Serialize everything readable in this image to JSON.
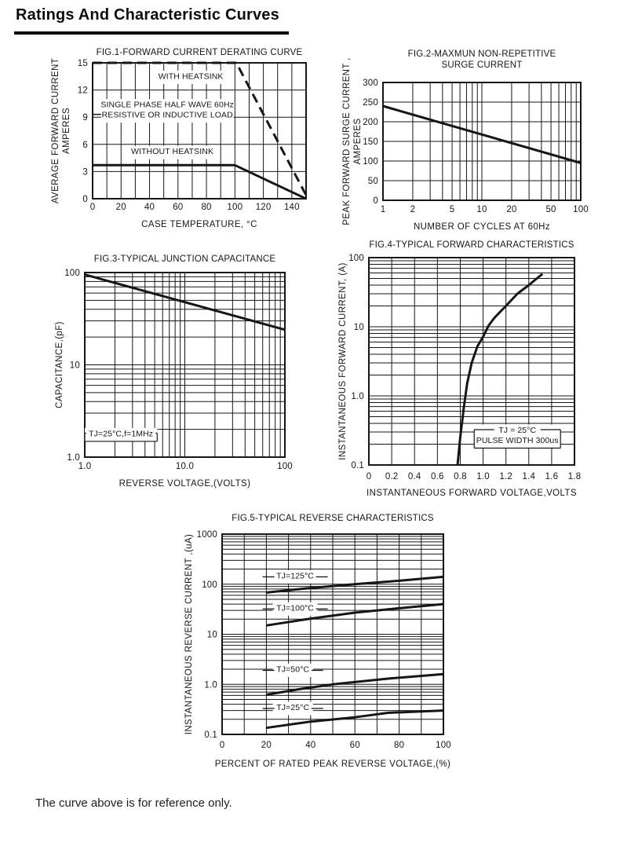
{
  "header": {
    "title": "Ratings And Characteristic Curves"
  },
  "footer": {
    "note": "The curve above is for reference only."
  },
  "ink": "#161616",
  "chart_data": [
    {
      "id": "fig1",
      "type": "line",
      "title": [
        "FIG.1-FORWARD CURRENT DERATING CURVE"
      ],
      "xlabel": "CASE TEMPERATURE, °C",
      "ylabel": [
        "AVERAGE FORWARD CURRENT",
        "AMPERES"
      ],
      "x_axis": {
        "type": "linear",
        "min": 0,
        "max": 150,
        "grid_step": 10,
        "ticks": [
          {
            "v": 0,
            "t": "0"
          },
          {
            "v": 20,
            "t": "20"
          },
          {
            "v": 40,
            "t": "40"
          },
          {
            "v": 60,
            "t": "60"
          },
          {
            "v": 80,
            "t": "80"
          },
          {
            "v": 100,
            "t": "100"
          },
          {
            "v": 120,
            "t": "120"
          },
          {
            "v": 140,
            "t": "140"
          }
        ]
      },
      "y_axis": {
        "type": "linear",
        "min": 0,
        "max": 15,
        "grid_step": 3,
        "ticks": [
          {
            "v": 0,
            "t": "0"
          },
          {
            "v": 3,
            "t": "3"
          },
          {
            "v": 6,
            "t": "6"
          },
          {
            "v": 9,
            "t": "9"
          },
          {
            "v": 12,
            "t": "12"
          },
          {
            "v": 15,
            "t": "15"
          }
        ]
      },
      "series": [
        {
          "name": "WITH HEATSINK",
          "style": "dashed",
          "points": [
            [
              0,
              15
            ],
            [
              101,
              15
            ],
            [
              150,
              0.4
            ]
          ]
        },
        {
          "name": "WITHOUT HEATSINK",
          "style": "solid",
          "points": [
            [
              0,
              3.7
            ],
            [
              100,
              3.7
            ],
            [
              150,
              0
            ]
          ]
        }
      ],
      "annotations": [
        {
          "style": "plain",
          "x": 69,
          "y": 13.4,
          "lines": [
            "WITH HEATSINK"
          ]
        },
        {
          "style": "plain",
          "x": 52.5,
          "y": 9.7,
          "dash_left": true,
          "lines": [
            "SINGLE PHASE HALF WAVE 60Hz",
            "RESISTIVE OR INDUCTIVE LOAD"
          ]
        },
        {
          "style": "plain",
          "x": 56,
          "y": 5.1,
          "lines": [
            "WITHOUT HEATSINK"
          ]
        }
      ]
    },
    {
      "id": "fig2",
      "type": "line",
      "title": [
        "FIG.2-MAXMUN NON-REPETITIVE",
        "SURGE CURRENT"
      ],
      "xlabel": "NUMBER OF CYCLES AT 60Hz",
      "ylabel": [
        "PEAK FORWARD SURGE CURRENT ,",
        "AMPERES"
      ],
      "x_axis": {
        "type": "log",
        "min": 1,
        "max": 100,
        "ticks": [
          {
            "v": 1,
            "t": "1"
          },
          {
            "v": 2,
            "t": "2"
          },
          {
            "v": 5,
            "t": "5"
          },
          {
            "v": 10,
            "t": "10"
          },
          {
            "v": 20,
            "t": "20"
          },
          {
            "v": 50,
            "t": "50"
          },
          {
            "v": 100,
            "t": "100"
          }
        ]
      },
      "y_axis": {
        "type": "linear",
        "min": 0,
        "max": 300,
        "grid_step": 50,
        "ticks": [
          {
            "v": 0,
            "t": "0"
          },
          {
            "v": 50,
            "t": "50"
          },
          {
            "v": 100,
            "t": "100"
          },
          {
            "v": 150,
            "t": "150"
          },
          {
            "v": 200,
            "t": "200"
          },
          {
            "v": 250,
            "t": "250"
          },
          {
            "v": 300,
            "t": "300"
          }
        ]
      },
      "series": [
        {
          "name": "surge current",
          "style": "solid",
          "points": [
            [
              1,
              240
            ],
            [
              100,
              95
            ]
          ]
        }
      ]
    },
    {
      "id": "fig3",
      "type": "line",
      "title": [
        "FIG.3-TYPICAL JUNCTION CAPACITANCE"
      ],
      "xlabel": "REVERSE VOLTAGE,(VOLTS)",
      "ylabel": [
        "CAPACITANCE,(pF)"
      ],
      "x_axis": {
        "type": "log",
        "min": 1,
        "max": 100,
        "ticks": [
          {
            "v": 1,
            "t": "1.0"
          },
          {
            "v": 10,
            "t": "10.0"
          },
          {
            "v": 100,
            "t": "100"
          }
        ]
      },
      "y_axis": {
        "type": "log",
        "min": 1,
        "max": 100,
        "ticks": [
          {
            "v": 1,
            "t": "1.0"
          },
          {
            "v": 10,
            "t": "10"
          },
          {
            "v": 100,
            "t": "100"
          }
        ]
      },
      "series": [
        {
          "name": "junction capacitance",
          "style": "solid",
          "points": [
            [
              1,
              95
            ],
            [
              100,
              24
            ]
          ]
        }
      ],
      "annotations": [
        {
          "style": "legend",
          "x": 2.3,
          "y": 1.75,
          "lines": [
            "TJ=25°C,f=1MHz"
          ]
        }
      ]
    },
    {
      "id": "fig4",
      "type": "line",
      "title": [
        "FIG.4-TYPICAL FORWARD CHARACTERISTICS"
      ],
      "xlabel": "INSTANTANEOUS FORWARD VOLTAGE,VOLTS",
      "ylabel": [
        "INSTANTANEOUS FORWARD CURRENT, (A)"
      ],
      "x_axis": {
        "type": "linear",
        "min": 0,
        "max": 1.8,
        "grid_step": 0.2,
        "ticks": [
          {
            "v": 0,
            "t": "0"
          },
          {
            "v": 0.2,
            "t": "0.2"
          },
          {
            "v": 0.4,
            "t": "0.4"
          },
          {
            "v": 0.6,
            "t": "0.6"
          },
          {
            "v": 0.8,
            "t": "0.8"
          },
          {
            "v": 1,
            "t": "1.0"
          },
          {
            "v": 1.2,
            "t": "1.2"
          },
          {
            "v": 1.4,
            "t": "1.4"
          },
          {
            "v": 1.6,
            "t": "1.6"
          },
          {
            "v": 1.8,
            "t": "1.8"
          }
        ]
      },
      "y_axis": {
        "type": "log",
        "min": 0.1,
        "max": 100,
        "ticks": [
          {
            "v": 0.1,
            "t": "0.1"
          },
          {
            "v": 1,
            "t": "1.0"
          },
          {
            "v": 10,
            "t": "10"
          },
          {
            "v": 100,
            "t": "100"
          }
        ]
      },
      "series": [
        {
          "name": "forward current",
          "style": "solid",
          "points": [
            [
              0.776,
              0.1
            ],
            [
              0.8,
              0.25
            ],
            [
              0.83,
              0.65
            ],
            [
              0.86,
              1.5
            ],
            [
              0.9,
              3
            ],
            [
              0.95,
              5.2
            ],
            [
              1,
              7.2
            ],
            [
              1.05,
              10.5
            ],
            [
              1.1,
              13.5
            ],
            [
              1.15,
              16.5
            ],
            [
              1.2,
              20
            ],
            [
              1.3,
              30
            ],
            [
              1.4,
              40
            ],
            [
              1.47,
              50
            ],
            [
              1.52,
              58
            ]
          ]
        }
      ],
      "annotations": [
        {
          "style": "legend",
          "x": 1.3,
          "y": 0.26,
          "lines": [
            "TJ = 25°C",
            "PULSE WIDTH 300us"
          ]
        }
      ]
    },
    {
      "id": "fig5",
      "type": "line",
      "title": [
        "FIG.5-TYPICAL REVERSE CHARACTERISTICS"
      ],
      "xlabel": "PERCENT OF RATED PEAK REVERSE VOLTAGE,(%)",
      "ylabel": [
        "INSTANTANEOUS REVERSE CURRENT ,(uA)"
      ],
      "x_axis": {
        "type": "linear",
        "min": 0,
        "max": 100,
        "grid_step": 10,
        "ticks": [
          {
            "v": 0,
            "t": "0"
          },
          {
            "v": 20,
            "t": "20"
          },
          {
            "v": 40,
            "t": "40"
          },
          {
            "v": 60,
            "t": "60"
          },
          {
            "v": 80,
            "t": "80"
          },
          {
            "v": 100,
            "t": "100"
          }
        ]
      },
      "y_axis": {
        "type": "log",
        "min": 0.1,
        "max": 1000,
        "ticks": [
          {
            "v": 0.1,
            "t": "0.1"
          },
          {
            "v": 1,
            "t": "1.0"
          },
          {
            "v": 10,
            "t": "10"
          },
          {
            "v": 100,
            "t": "100"
          },
          {
            "v": 1000,
            "t": "1000"
          }
        ]
      },
      "series": [
        {
          "name": "TJ=125°C",
          "style": "solid",
          "points": [
            [
              20,
              68
            ],
            [
              40,
              84
            ],
            [
              60,
              100
            ],
            [
              80,
              117
            ],
            [
              100,
              140
            ]
          ]
        },
        {
          "name": "TJ=100°C",
          "style": "solid",
          "points": [
            [
              20,
              15
            ],
            [
              40,
              20.5
            ],
            [
              60,
              27
            ],
            [
              80,
              33
            ],
            [
              100,
              40
            ]
          ]
        },
        {
          "name": "TJ=50°C",
          "style": "solid",
          "points": [
            [
              20,
              0.62
            ],
            [
              35,
              0.8
            ],
            [
              50,
              1.0
            ],
            [
              75,
              1.3
            ],
            [
              100,
              1.6
            ]
          ]
        },
        {
          "name": "TJ=25°C",
          "style": "solid",
          "points": [
            [
              20,
              0.135
            ],
            [
              40,
              0.18
            ],
            [
              60,
              0.22
            ],
            [
              75,
              0.27
            ],
            [
              100,
              0.3
            ]
          ]
        }
      ],
      "annotations": [
        {
          "style": "flank",
          "x": 33,
          "y": 140,
          "lines": [
            "TJ=125°C"
          ]
        },
        {
          "style": "flank",
          "x": 33,
          "y": 32,
          "lines": [
            "TJ=100°C"
          ]
        },
        {
          "style": "flank",
          "x": 32,
          "y": 1.9,
          "lines": [
            "TJ=50°C"
          ]
        },
        {
          "style": "flank",
          "x": 32,
          "y": 0.33,
          "lines": [
            "TJ=25°C"
          ]
        }
      ]
    }
  ]
}
